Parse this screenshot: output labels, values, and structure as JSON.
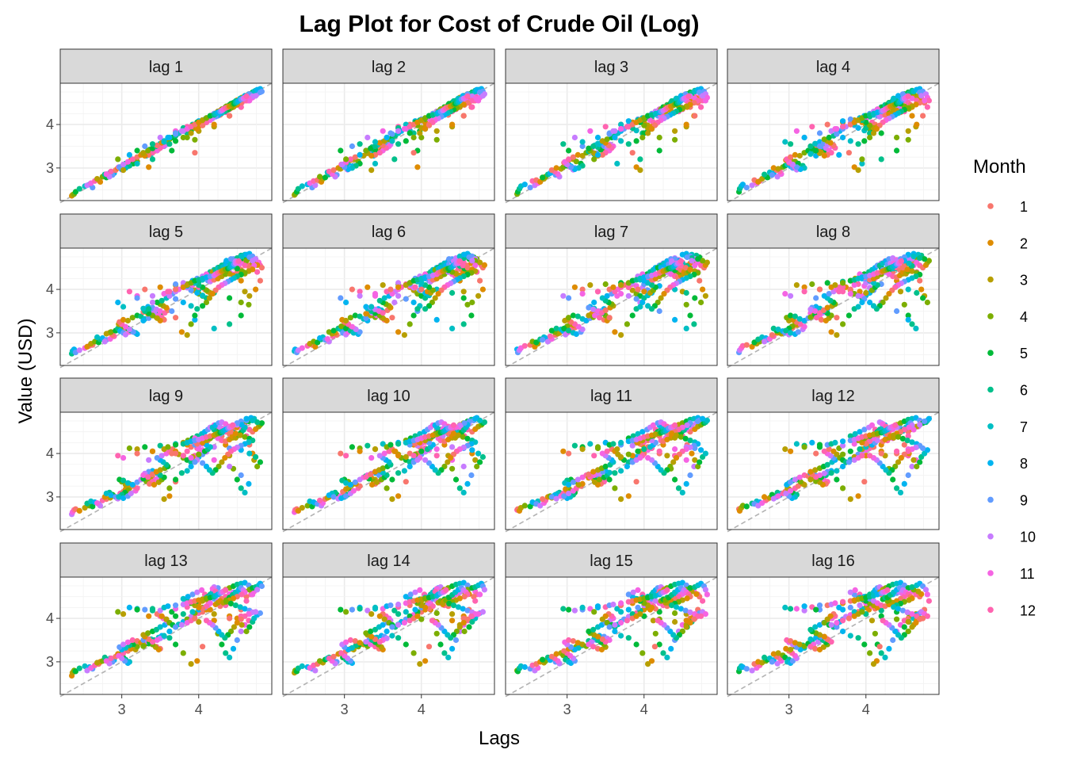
{
  "chart_data": {
    "type": "scatter",
    "title": "Lag Plot for Cost of Crude Oil (Log)",
    "xlabel": "Lags",
    "ylabel": "Value (USD)",
    "xlim": [
      2.2,
      4.95
    ],
    "ylim": [
      2.25,
      4.95
    ],
    "x_ticks": [
      3,
      4
    ],
    "x_tick_labels": [
      "3",
      "4"
    ],
    "y_ticks": [
      3,
      4
    ],
    "y_tick_labels": [
      "3",
      "4"
    ],
    "grid": true,
    "reference_line": "y = x (dashed grey)",
    "panels": [
      "lag 1",
      "lag 2",
      "lag 3",
      "lag 4",
      "lag 5",
      "lag 6",
      "lag 7",
      "lag 8",
      "lag 9",
      "lag 10",
      "lag 11",
      "lag 12",
      "lag 13",
      "lag 14",
      "lag 15",
      "lag 16"
    ],
    "legend": {
      "title": "Month",
      "position": "right",
      "entries": [
        {
          "label": "1",
          "color": "#F8766D"
        },
        {
          "label": "2",
          "color": "#DE8C00"
        },
        {
          "label": "3",
          "color": "#B79F00"
        },
        {
          "label": "4",
          "color": "#7CAE00"
        },
        {
          "label": "5",
          "color": "#00BA38"
        },
        {
          "label": "6",
          "color": "#00C08B"
        },
        {
          "label": "7",
          "color": "#00BFC4"
        },
        {
          "label": "8",
          "color": "#00B4F0"
        },
        {
          "label": "9",
          "color": "#619CFF"
        },
        {
          "label": "10",
          "color": "#C77CFF"
        },
        {
          "label": "11",
          "color": "#F564E3"
        },
        {
          "label": "12",
          "color": "#FF64B0"
        }
      ]
    },
    "series_months": 12,
    "base_series": [
      [
        2.35,
        2.36,
        2.38,
        2.4,
        2.45,
        2.52,
        2.58,
        2.62,
        2.55,
        2.6,
        2.65,
        2.7
      ],
      [
        2.72,
        2.68,
        2.75,
        2.8,
        2.78,
        2.85,
        2.9,
        2.88,
        2.84,
        2.8,
        2.86,
        2.92
      ],
      [
        2.95,
        3.0,
        2.98,
        3.02,
        3.05,
        3.1,
        3.08,
        3.04,
        3.0,
        2.96,
        3.02,
        3.08
      ],
      [
        3.12,
        3.18,
        3.2,
        3.15,
        3.1,
        3.05,
        3.0,
        2.97,
        3.02,
        3.08,
        3.14,
        3.2
      ],
      [
        3.25,
        3.3,
        3.28,
        3.35,
        3.4,
        3.38,
        3.32,
        3.28,
        3.34,
        3.4,
        3.45,
        3.5
      ],
      [
        3.48,
        3.44,
        3.4,
        3.36,
        3.42,
        3.48,
        3.52,
        3.55,
        3.5,
        3.46,
        3.4,
        3.35
      ],
      [
        3.3,
        3.28,
        3.34,
        3.4,
        3.45,
        3.5,
        3.56,
        3.6,
        3.58,
        3.54,
        3.5,
        3.46
      ],
      [
        3.52,
        3.58,
        3.62,
        3.66,
        3.7,
        3.74,
        3.8,
        3.85,
        3.9,
        3.95,
        4.0,
        4.05
      ],
      [
        4.1,
        4.05,
        3.98,
        3.9,
        3.85,
        3.8,
        3.86,
        3.92,
        3.98,
        4.04,
        4.08,
        4.12
      ],
      [
        4.15,
        4.2,
        4.25,
        4.3,
        4.35,
        4.4,
        4.45,
        4.5,
        4.55,
        4.6,
        4.65,
        4.55
      ],
      [
        4.4,
        4.2,
        3.95,
        3.65,
        3.4,
        3.2,
        3.1,
        3.3,
        3.5,
        3.7,
        3.85,
        3.95
      ],
      [
        4.0,
        4.05,
        4.1,
        4.12,
        4.15,
        4.18,
        4.22,
        4.25,
        4.2,
        4.18,
        4.22,
        4.26
      ],
      [
        4.3,
        4.35,
        4.4,
        4.45,
        4.5,
        4.55,
        4.6,
        4.65,
        4.7,
        4.72,
        4.68,
        4.62
      ],
      [
        4.55,
        4.6,
        4.66,
        4.7,
        4.74,
        4.78,
        4.8,
        4.82,
        4.76,
        4.7,
        4.62,
        4.55
      ],
      [
        4.5,
        4.56,
        4.62,
        4.66,
        4.7,
        4.72,
        4.76,
        4.8,
        4.74,
        4.66,
        4.55,
        4.4
      ],
      [
        4.2,
        4.0,
        3.85,
        3.7,
        3.8,
        3.92,
        4.0,
        4.08,
        4.12,
        4.15,
        4.1,
        4.05
      ],
      [
        4.0,
        3.95,
        3.92,
        3.98,
        4.05,
        4.1,
        4.15,
        4.2,
        4.25,
        4.3,
        4.35,
        4.28
      ],
      [
        4.22,
        4.25,
        4.3,
        4.35,
        4.4,
        4.44,
        4.48,
        4.5,
        4.45,
        4.4,
        4.35,
        4.3
      ],
      [
        4.28,
        4.32,
        4.36,
        4.4,
        4.44,
        4.48,
        4.52,
        4.55,
        4.58,
        4.6,
        4.56,
        4.5
      ],
      [
        4.45,
        4.4,
        4.36,
        4.42,
        4.48,
        4.54,
        4.6,
        4.66,
        4.7,
        4.65,
        4.6,
        4.55
      ],
      [
        4.5,
        4.46,
        4.42,
        4.38,
        4.34,
        4.3,
        4.26,
        4.22,
        4.18,
        4.14,
        4.1,
        4.05
      ],
      [
        3.98,
        3.9,
        3.8,
        3.7,
        3.62,
        3.55,
        3.62,
        3.7,
        3.78,
        3.85,
        3.9,
        3.95
      ],
      [
        3.35,
        3.02,
        2.95,
        3.2,
        3.4,
        3.55,
        3.6,
        3.7,
        3.8,
        3.85,
        3.9,
        3.95
      ],
      [
        4.0,
        4.05,
        4.1,
        4.15,
        4.2,
        4.22,
        4.25,
        4.28,
        4.3,
        4.32,
        4.35,
        4.38
      ],
      [
        4.4,
        4.42,
        4.44,
        4.46,
        4.48,
        4.5,
        4.52,
        4.55,
        4.58,
        4.6,
        4.62,
        4.65
      ]
    ]
  }
}
